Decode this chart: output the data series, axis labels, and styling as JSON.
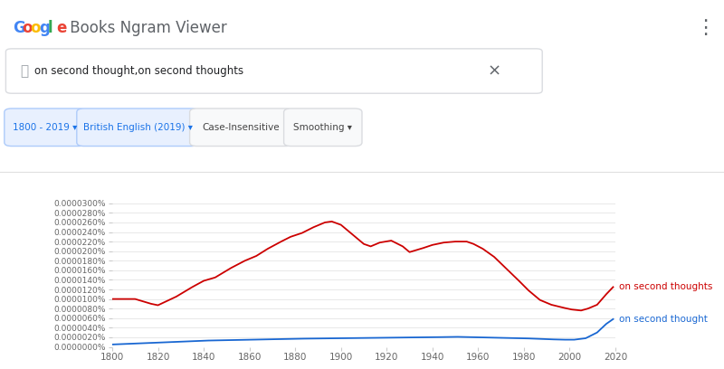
{
  "google_letters": [
    {
      "text": "G",
      "color": "#4285F4"
    },
    {
      "text": "o",
      "color": "#EA4335"
    },
    {
      "text": "o",
      "color": "#FBBC05"
    },
    {
      "text": "g",
      "color": "#4285F4"
    },
    {
      "text": "l",
      "color": "#34A853"
    },
    {
      "text": "e",
      "color": "#EA4335"
    }
  ],
  "google_rest": " Books Ngram Viewer",
  "search_text": "on second thought,on second thoughts",
  "xmin": 1800,
  "xmax": 2019,
  "ymin": 0.0,
  "ymax": 3.2e-08,
  "ytick_vals": [
    0.0,
    2e-09,
    4e-09,
    6e-09,
    8e-09,
    1e-08,
    1.2e-08,
    1.4e-08,
    1.6e-08,
    1.8e-08,
    2e-08,
    2.2e-08,
    2.4e-08,
    2.6e-08,
    2.8e-08,
    3e-08
  ],
  "ytick_labels": [
    "0.0000000%",
    "0.0000020%",
    "0.0000040%",
    "0.0000060%",
    "0.0000080%",
    "0.0000100%",
    "0.0000120%",
    "0.0000140%",
    "0.0000160%",
    "0.0000180%",
    "0.0000200%",
    "0.0000220%",
    "0.0000240%",
    "0.0000260%",
    "0.0000280%",
    "0.0000300%"
  ],
  "xticks": [
    1800,
    1820,
    1840,
    1860,
    1880,
    1900,
    1920,
    1940,
    1960,
    1980,
    2000,
    2020
  ],
  "red_label": "on second thoughts",
  "blue_label": "on second thought",
  "background_color": "#ffffff",
  "grid_color": "#e8e8e8",
  "red_color": "#cc0000",
  "blue_color": "#1967d2",
  "header_bg": "#ffffff",
  "search_border": "#cccccc",
  "btn1_text": "1800 - 2019",
  "btn2_text": "British English (2019)",
  "btn3_text": "Case-Insensitive",
  "btn4_text": "Smoothing",
  "btn_blue_color": "#1a73e8",
  "btn_blue_bg": "#e8f0fe",
  "btn_blue_border": "#aecbfa",
  "btn_grey_color": "#444444",
  "btn_grey_bg": "#f8f9fa",
  "btn_grey_border": "#dadce0"
}
